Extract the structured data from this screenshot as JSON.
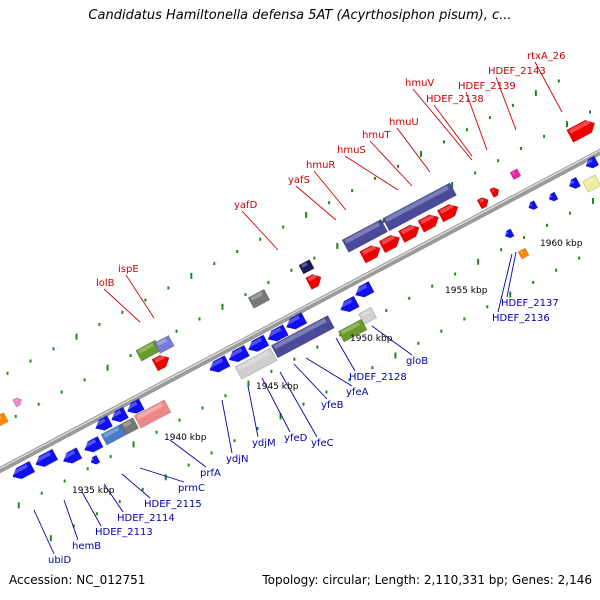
{
  "map": {
    "title": "Candidatus Hamiltonella defensa 5AT (Acyrthosiphon pisum), c...",
    "accession": "Accession: NC_012751",
    "summary": "Topology: circular; Length: 2,110,331 bp; Genes: 2,146"
  },
  "scale_labels": [
    "1935 kbp",
    "1940 kbp",
    "1945 kbp",
    "1950 kbp",
    "1955 kbp",
    "1960 kbp"
  ],
  "top_labels": [
    "lolB",
    "ispE",
    "yafD",
    "yafS",
    "hmuR",
    "hmuS",
    "hmuT",
    "hmuU",
    "hmuV",
    "HDEF_2138",
    "HDEF_2139",
    "HDEF_2143",
    "rtxA_26"
  ],
  "bottom_labels": [
    "ubiD",
    "hemB",
    "HDEF_2113",
    "HDEF_2114",
    "HDEF_2115",
    "prmC",
    "prfA",
    "ydjN",
    "ydjM",
    "yfeD",
    "yfeC",
    "yfeB",
    "yfeA",
    "HDEF_2128",
    "gloB",
    "HDEF_2136",
    "HDEF_2137"
  ],
  "colors": {
    "forward_gene": "#ee0000",
    "reverse_gene": "#1010ee",
    "label_top": "#cc0000",
    "label_bottom": "#0000aa",
    "operon": "#4a4a9a",
    "backbone": "#808080",
    "tick": "#1a8a1a",
    "grey_gene": "#777777",
    "olive_gene": "#6a9a2a",
    "pink_gene": "#ee8888",
    "orange_gene": "#ff8800",
    "magenta_gene": "#ee22aa",
    "khaki_gene": "#eeee99"
  }
}
